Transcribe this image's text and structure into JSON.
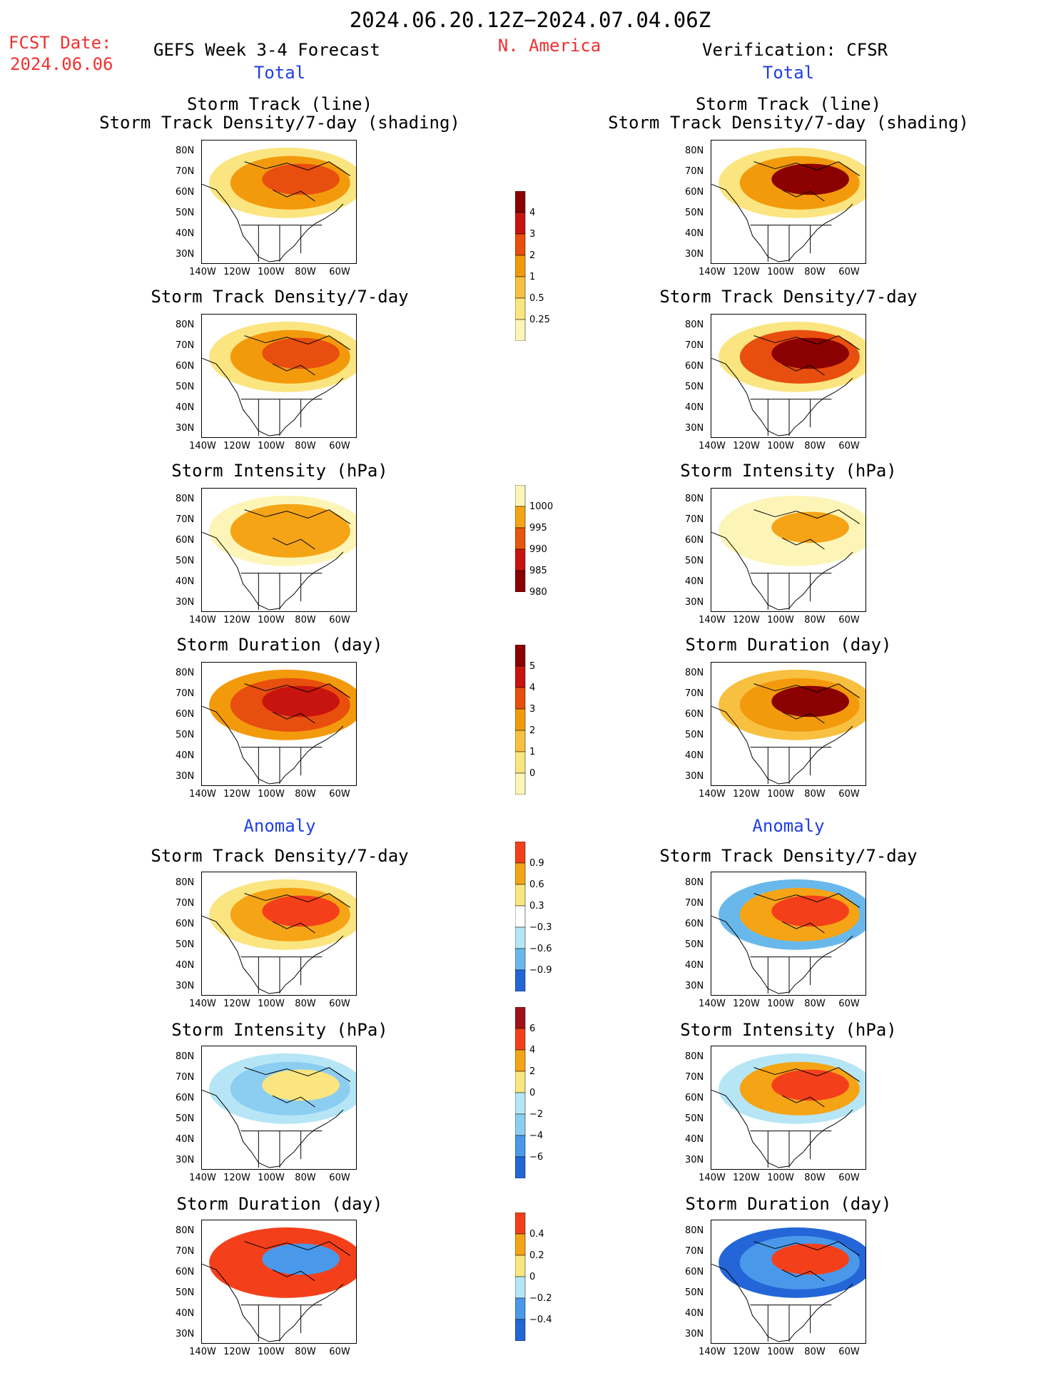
{
  "header": {
    "date_range": "2024.06.20.12Z−2024.07.04.06Z",
    "fcst_label": "FCST Date:",
    "fcst_date": "2024.06.06",
    "left_title": "GEFS Week 3-4 Forecast",
    "region": "N. America",
    "right_title": "Verification: CFSR"
  },
  "sections": {
    "total": "Total",
    "anomaly": "Anomaly"
  },
  "panel_titles": {
    "track_line": "Storm Track (line)",
    "track_shading": "Storm Track Density/7-day (shading)",
    "density": "Storm Track Density/7-day",
    "intensity": "Storm Intensity (hPa)",
    "duration": "Storm Duration (day)"
  },
  "axes": {
    "y_ticks": [
      "80N",
      "70N",
      "60N",
      "50N",
      "40N",
      "30N"
    ],
    "x_ticks": [
      "140W",
      "120W",
      "100W",
      "80W",
      "60W"
    ]
  },
  "colorbars": [
    {
      "id": "density_total",
      "labels": [
        "4",
        "3",
        "2",
        "1",
        "0.5",
        "0.25"
      ],
      "colors": [
        "#8b0000",
        "#c8140e",
        "#e84e0e",
        "#f39a0c",
        "#f8c040",
        "#fbe580",
        "#fdf5b8"
      ]
    },
    {
      "id": "intensity_total",
      "labels": [
        "1000",
        "995",
        "990",
        "985",
        "980"
      ],
      "colors": [
        "#fdf5b8",
        "#f5a416",
        "#e8550e",
        "#c8140e",
        "#8b0000"
      ]
    },
    {
      "id": "duration_total",
      "labels": [
        "5",
        "4",
        "3",
        "2",
        "1",
        "0"
      ],
      "colors": [
        "#8b0000",
        "#c8140e",
        "#e84e0e",
        "#f39a0c",
        "#f8c040",
        "#fbe580",
        "#fdf5b8"
      ]
    },
    {
      "id": "density_anom",
      "labels": [
        "0.9",
        "0.6",
        "0.3",
        "−0.3",
        "−0.6",
        "−0.9"
      ],
      "colors": [
        "#f4401a",
        "#f5a416",
        "#fbe580",
        "#ffffff",
        "#b6e6f6",
        "#69b8ec",
        "#2466d8"
      ]
    },
    {
      "id": "intensity_anom",
      "labels": [
        "6",
        "4",
        "2",
        "0",
        "−2",
        "−4",
        "−6"
      ],
      "colors": [
        "#a0121a",
        "#f4401a",
        "#f5a416",
        "#fbe580",
        "#b6e6f6",
        "#8ccdf2",
        "#4a98ea",
        "#2466d8"
      ]
    },
    {
      "id": "duration_anom",
      "labels": [
        "0.4",
        "0.2",
        "0",
        "−0.2",
        "−0.4"
      ],
      "colors": [
        "#f4401a",
        "#f5a416",
        "#fbe580",
        "#b6e6f6",
        "#4a98ea",
        "#2466d8"
      ]
    }
  ],
  "chart_data": [
    {
      "type": "heatmap",
      "panel": "GEFS storm track + density",
      "xlim": [
        "140W",
        "50W"
      ],
      "ylim": [
        "25N",
        "85N"
      ],
      "dominant_colors": [
        "#f39a0c",
        "#f8c040"
      ]
    },
    {
      "type": "heatmap",
      "panel": "CFSR storm track + density",
      "dominant_colors": [
        "#c8140e",
        "#f39a0c"
      ]
    },
    {
      "type": "heatmap",
      "panel": "GEFS density",
      "dominant_colors": [
        "#f39a0c",
        "#e84e0e"
      ]
    },
    {
      "type": "heatmap",
      "panel": "CFSR density",
      "dominant_colors": [
        "#8b0000",
        "#e84e0e"
      ]
    },
    {
      "type": "heatmap",
      "panel": "GEFS intensity",
      "dominant_colors": [
        "#f5a416"
      ]
    },
    {
      "type": "heatmap",
      "panel": "CFSR intensity",
      "dominant_colors": [
        "#fdf5b8",
        "#f5a416"
      ]
    },
    {
      "type": "heatmap",
      "panel": "GEFS duration",
      "dominant_colors": [
        "#c8140e",
        "#e84e0e"
      ]
    },
    {
      "type": "heatmap",
      "panel": "CFSR duration",
      "dominant_colors": [
        "#8b0000",
        "#f39a0c"
      ]
    },
    {
      "type": "heatmap",
      "panel": "GEFS density anomaly",
      "dominant_colors": [
        "#f4401a",
        "#fbe580"
      ]
    },
    {
      "type": "heatmap",
      "panel": "CFSR density anomaly",
      "dominant_colors": [
        "#f4401a",
        "#2466d8"
      ]
    },
    {
      "type": "heatmap",
      "panel": "GEFS intensity anomaly",
      "dominant_colors": [
        "#b6e6f6",
        "#8ccdf2"
      ]
    },
    {
      "type": "heatmap",
      "panel": "CFSR intensity anomaly",
      "dominant_colors": [
        "#f5a416",
        "#8ccdf2"
      ]
    },
    {
      "type": "heatmap",
      "panel": "GEFS duration anomaly",
      "dominant_colors": [
        "#f4401a"
      ]
    },
    {
      "type": "heatmap",
      "panel": "CFSR duration anomaly",
      "dominant_colors": [
        "#f4401a",
        "#2466d8"
      ]
    }
  ]
}
